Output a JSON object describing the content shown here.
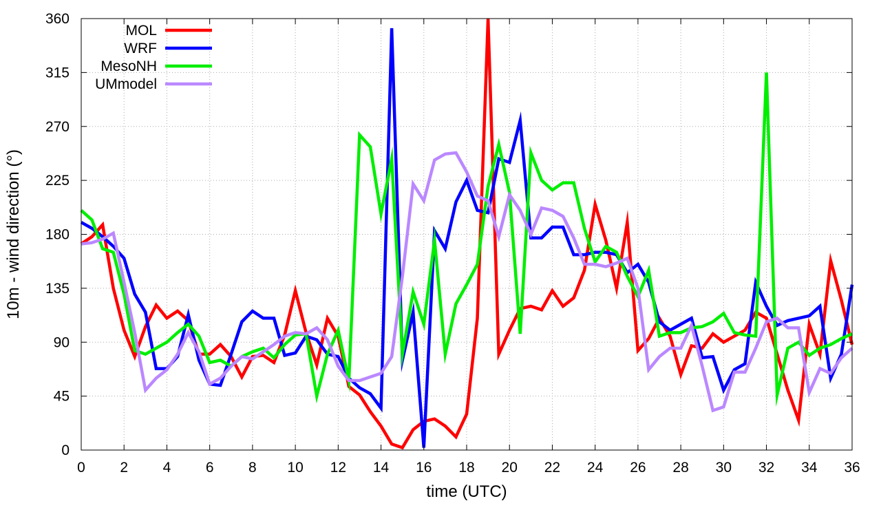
{
  "chart_data": {
    "type": "line",
    "xlabel": "time (UTC)",
    "ylabel": "10m - wind direction (°)",
    "xlim": [
      0,
      36
    ],
    "ylim": [
      0,
      360
    ],
    "xticks": [
      0,
      2,
      4,
      6,
      8,
      10,
      12,
      14,
      16,
      18,
      20,
      22,
      24,
      26,
      28,
      30,
      32,
      34,
      36
    ],
    "yticks": [
      0,
      45,
      90,
      135,
      180,
      225,
      270,
      315,
      360
    ],
    "grid": true,
    "legend_position": "top-left",
    "series": [
      {
        "name": "MOL",
        "color": "#ff0000",
        "points": [
          [
            0,
            172
          ],
          [
            0.5,
            178
          ],
          [
            1,
            188
          ],
          [
            1.5,
            135
          ],
          [
            2,
            100
          ],
          [
            2.5,
            78
          ],
          [
            3,
            103
          ],
          [
            3.5,
            121
          ],
          [
            4,
            110
          ],
          [
            4.5,
            116
          ],
          [
            5,
            108
          ],
          [
            5.5,
            80
          ],
          [
            6,
            80
          ],
          [
            6.5,
            88
          ],
          [
            7,
            78
          ],
          [
            7.5,
            61
          ],
          [
            8,
            78
          ],
          [
            8.5,
            79
          ],
          [
            9,
            73
          ],
          [
            9.5,
            96
          ],
          [
            10,
            133
          ],
          [
            10.5,
            98
          ],
          [
            11,
            71
          ],
          [
            11.5,
            110
          ],
          [
            12,
            95
          ],
          [
            12.5,
            53
          ],
          [
            13,
            46
          ],
          [
            13.5,
            32
          ],
          [
            14,
            20
          ],
          [
            14.5,
            5
          ],
          [
            15,
            2
          ],
          [
            15.5,
            17
          ],
          [
            16,
            24
          ],
          [
            16.5,
            26
          ],
          [
            17,
            20
          ],
          [
            17.5,
            11
          ],
          [
            18,
            30
          ],
          [
            18.5,
            110
          ],
          [
            19,
            360
          ],
          [
            19.5,
            80
          ],
          [
            20,
            100
          ],
          [
            20.5,
            118
          ],
          [
            21,
            120
          ],
          [
            21.5,
            117
          ],
          [
            22,
            133
          ],
          [
            22.5,
            120
          ],
          [
            23,
            127
          ],
          [
            23.5,
            150
          ],
          [
            24,
            205
          ],
          [
            24.5,
            175
          ],
          [
            25,
            135
          ],
          [
            25.5,
            190
          ],
          [
            26,
            83
          ],
          [
            26.5,
            93
          ],
          [
            27,
            110
          ],
          [
            27.5,
            95
          ],
          [
            28,
            63
          ],
          [
            28.5,
            87
          ],
          [
            29,
            85
          ],
          [
            29.5,
            97
          ],
          [
            30,
            90
          ],
          [
            30.5,
            95
          ],
          [
            31,
            100
          ],
          [
            31.5,
            115
          ],
          [
            32,
            110
          ],
          [
            32.5,
            80
          ],
          [
            33,
            50
          ],
          [
            33.5,
            25
          ],
          [
            34,
            105
          ],
          [
            34.5,
            80
          ],
          [
            35,
            158
          ],
          [
            35.5,
            125
          ],
          [
            36,
            88
          ]
        ]
      },
      {
        "name": "WRF",
        "color": "#0000ff",
        "points": [
          [
            0,
            190
          ],
          [
            0.5,
            185
          ],
          [
            1,
            178
          ],
          [
            1.5,
            170
          ],
          [
            2,
            160
          ],
          [
            2.5,
            130
          ],
          [
            3,
            115
          ],
          [
            3.5,
            68
          ],
          [
            4,
            68
          ],
          [
            4.5,
            78
          ],
          [
            5,
            113
          ],
          [
            5.5,
            75
          ],
          [
            6,
            55
          ],
          [
            6.5,
            54
          ],
          [
            7,
            80
          ],
          [
            7.5,
            107
          ],
          [
            8,
            116
          ],
          [
            8.5,
            110
          ],
          [
            9,
            110
          ],
          [
            9.5,
            79
          ],
          [
            10,
            81
          ],
          [
            10.5,
            95
          ],
          [
            11,
            92
          ],
          [
            11.5,
            80
          ],
          [
            12,
            78
          ],
          [
            12.5,
            60
          ],
          [
            13,
            52
          ],
          [
            13.5,
            47
          ],
          [
            14,
            35
          ],
          [
            14.5,
            352
          ],
          [
            15,
            75
          ],
          [
            15.5,
            115
          ],
          [
            16,
            2
          ],
          [
            16.5,
            183
          ],
          [
            17,
            168
          ],
          [
            17.5,
            207
          ],
          [
            18,
            225
          ],
          [
            18.5,
            200
          ],
          [
            19,
            198
          ],
          [
            19.5,
            243
          ],
          [
            20,
            240
          ],
          [
            20.5,
            275
          ],
          [
            21,
            177
          ],
          [
            21.5,
            177
          ],
          [
            22,
            186
          ],
          [
            22.5,
            186
          ],
          [
            23,
            163
          ],
          [
            23.5,
            163
          ],
          [
            24,
            165
          ],
          [
            24.5,
            165
          ],
          [
            25,
            163
          ],
          [
            25.5,
            148
          ],
          [
            26,
            155
          ],
          [
            26.5,
            140
          ],
          [
            27,
            107
          ],
          [
            27.5,
            100
          ],
          [
            28,
            105
          ],
          [
            28.5,
            110
          ],
          [
            29,
            77
          ],
          [
            29.5,
            78
          ],
          [
            30,
            50
          ],
          [
            30.5,
            67
          ],
          [
            31,
            72
          ],
          [
            31.5,
            140
          ],
          [
            32,
            120
          ],
          [
            32.5,
            104
          ],
          [
            33,
            108
          ],
          [
            33.5,
            110
          ],
          [
            34,
            112
          ],
          [
            34.5,
            120
          ],
          [
            35,
            60
          ],
          [
            35.5,
            80
          ],
          [
            36,
            138
          ]
        ]
      },
      {
        "name": "MesoNH",
        "color": "#00ee00",
        "points": [
          [
            0,
            200
          ],
          [
            0.5,
            192
          ],
          [
            1,
            168
          ],
          [
            1.5,
            165
          ],
          [
            2,
            130
          ],
          [
            2.5,
            83
          ],
          [
            3,
            80
          ],
          [
            3.5,
            85
          ],
          [
            4,
            90
          ],
          [
            4.5,
            98
          ],
          [
            5,
            105
          ],
          [
            5.5,
            95
          ],
          [
            6,
            73
          ],
          [
            6.5,
            75
          ],
          [
            7,
            70
          ],
          [
            7.5,
            78
          ],
          [
            8,
            82
          ],
          [
            8.5,
            85
          ],
          [
            9,
            77
          ],
          [
            9.5,
            88
          ],
          [
            10,
            96
          ],
          [
            10.5,
            97
          ],
          [
            11,
            45
          ],
          [
            11.5,
            80
          ],
          [
            12,
            100
          ],
          [
            12.5,
            58
          ],
          [
            13,
            263
          ],
          [
            13.5,
            253
          ],
          [
            14,
            197
          ],
          [
            14.5,
            243
          ],
          [
            15,
            80
          ],
          [
            15.5,
            132
          ],
          [
            16,
            105
          ],
          [
            16.5,
            175
          ],
          [
            17,
            80
          ],
          [
            17.5,
            122
          ],
          [
            18,
            138
          ],
          [
            18.5,
            155
          ],
          [
            19,
            220
          ],
          [
            19.5,
            255
          ],
          [
            20,
            215
          ],
          [
            20.5,
            97
          ],
          [
            21,
            248
          ],
          [
            21.5,
            225
          ],
          [
            22,
            217
          ],
          [
            22.5,
            223
          ],
          [
            23,
            223
          ],
          [
            23.5,
            185
          ],
          [
            24,
            157
          ],
          [
            24.5,
            170
          ],
          [
            25,
            165
          ],
          [
            25.5,
            145
          ],
          [
            26,
            128
          ],
          [
            26.5,
            150
          ],
          [
            27,
            95
          ],
          [
            27.5,
            98
          ],
          [
            28,
            98
          ],
          [
            28.5,
            102
          ],
          [
            29,
            103
          ],
          [
            29.5,
            107
          ],
          [
            30,
            114
          ],
          [
            30.5,
            98
          ],
          [
            31,
            96
          ],
          [
            31.5,
            95
          ],
          [
            32,
            315
          ],
          [
            32.5,
            46
          ],
          [
            33,
            85
          ],
          [
            33.5,
            90
          ],
          [
            34,
            79
          ],
          [
            34.5,
            85
          ],
          [
            35,
            88
          ],
          [
            35.5,
            93
          ],
          [
            36,
            97
          ]
        ]
      },
      {
        "name": "UMmodel",
        "color": "#bb88ff",
        "points": [
          [
            0,
            172
          ],
          [
            0.5,
            173
          ],
          [
            1,
            176
          ],
          [
            1.5,
            181
          ],
          [
            2,
            140
          ],
          [
            2.5,
            98
          ],
          [
            3,
            50
          ],
          [
            3.5,
            60
          ],
          [
            4,
            67
          ],
          [
            4.5,
            80
          ],
          [
            5,
            98
          ],
          [
            5.5,
            82
          ],
          [
            6,
            55
          ],
          [
            6.5,
            60
          ],
          [
            7,
            70
          ],
          [
            7.5,
            78
          ],
          [
            8,
            76
          ],
          [
            8.5,
            82
          ],
          [
            9,
            88
          ],
          [
            9.5,
            95
          ],
          [
            10,
            98
          ],
          [
            10.5,
            97
          ],
          [
            11,
            102
          ],
          [
            11.5,
            92
          ],
          [
            12,
            70
          ],
          [
            12.5,
            58
          ],
          [
            13,
            58
          ],
          [
            13.5,
            61
          ],
          [
            14,
            64
          ],
          [
            14.5,
            78
          ],
          [
            15,
            145
          ],
          [
            15.5,
            222
          ],
          [
            16,
            208
          ],
          [
            16.5,
            242
          ],
          [
            17,
            247
          ],
          [
            17.5,
            248
          ],
          [
            18,
            232
          ],
          [
            18.5,
            212
          ],
          [
            19,
            208
          ],
          [
            19.5,
            178
          ],
          [
            20,
            213
          ],
          [
            20.5,
            200
          ],
          [
            21,
            180
          ],
          [
            21.5,
            202
          ],
          [
            22,
            200
          ],
          [
            22.5,
            195
          ],
          [
            23,
            177
          ],
          [
            23.5,
            155
          ],
          [
            24,
            155
          ],
          [
            24.5,
            153
          ],
          [
            25,
            156
          ],
          [
            25.5,
            160
          ],
          [
            26,
            135
          ],
          [
            26.5,
            67
          ],
          [
            27,
            78
          ],
          [
            27.5,
            85
          ],
          [
            28,
            85
          ],
          [
            28.5,
            104
          ],
          [
            29,
            70
          ],
          [
            29.5,
            33
          ],
          [
            30,
            36
          ],
          [
            30.5,
            65
          ],
          [
            31,
            65
          ],
          [
            31.5,
            85
          ],
          [
            32,
            107
          ],
          [
            32.5,
            110
          ],
          [
            33,
            102
          ],
          [
            33.5,
            102
          ],
          [
            34,
            48
          ],
          [
            34.5,
            68
          ],
          [
            35,
            64
          ],
          [
            35.5,
            77
          ],
          [
            36,
            85
          ]
        ]
      }
    ]
  }
}
